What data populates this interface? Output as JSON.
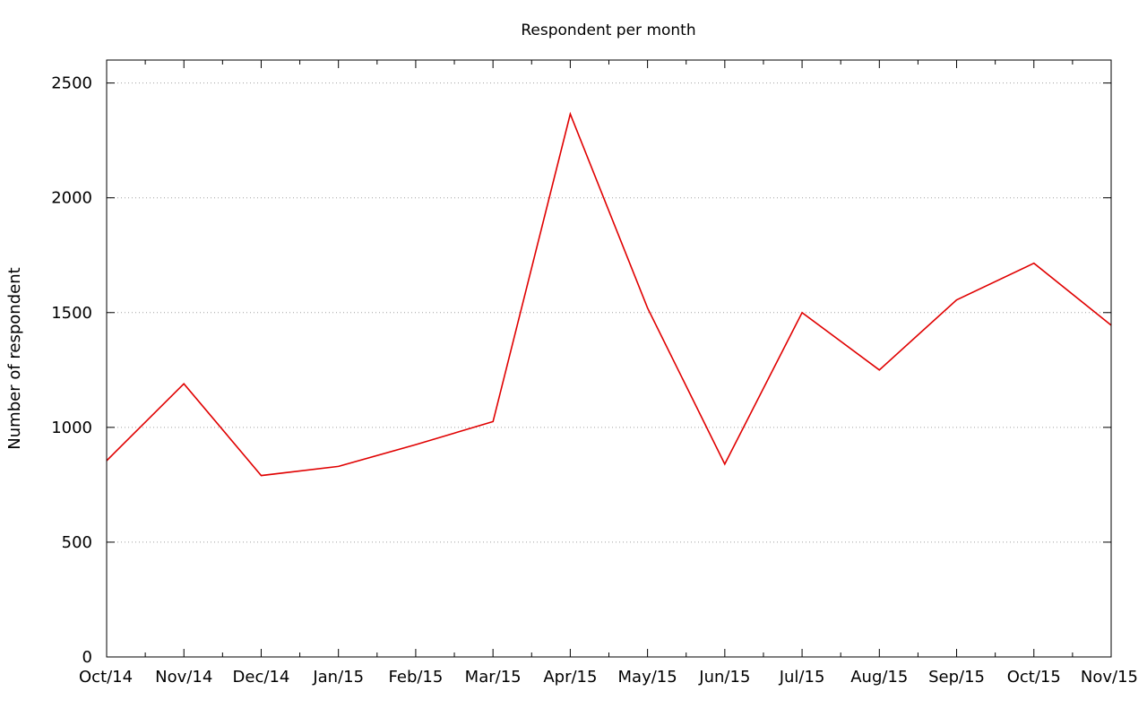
{
  "chart_data": {
    "type": "line",
    "title": "Respondent per month",
    "xlabel": "",
    "ylabel": "Number of respondent",
    "categories": [
      "Oct/14",
      "Nov/14",
      "Dec/14",
      "Jan/15",
      "Feb/15",
      "Mar/15",
      "Apr/15",
      "May/15",
      "Jun/15",
      "Jul/15",
      "Aug/15",
      "Sep/15",
      "Oct/15",
      "Nov/15"
    ],
    "series": [
      {
        "name": "",
        "values": [
          855,
          1190,
          790,
          830,
          925,
          1025,
          2365,
          1520,
          840,
          1500,
          1250,
          1555,
          1715,
          1445
        ],
        "color": "#e00000"
      }
    ],
    "ylim": [
      0,
      2600
    ],
    "yticks": [
      0,
      500,
      1000,
      1500,
      2000,
      2500
    ],
    "grid": "horizontal-dotted",
    "legend": "none"
  }
}
